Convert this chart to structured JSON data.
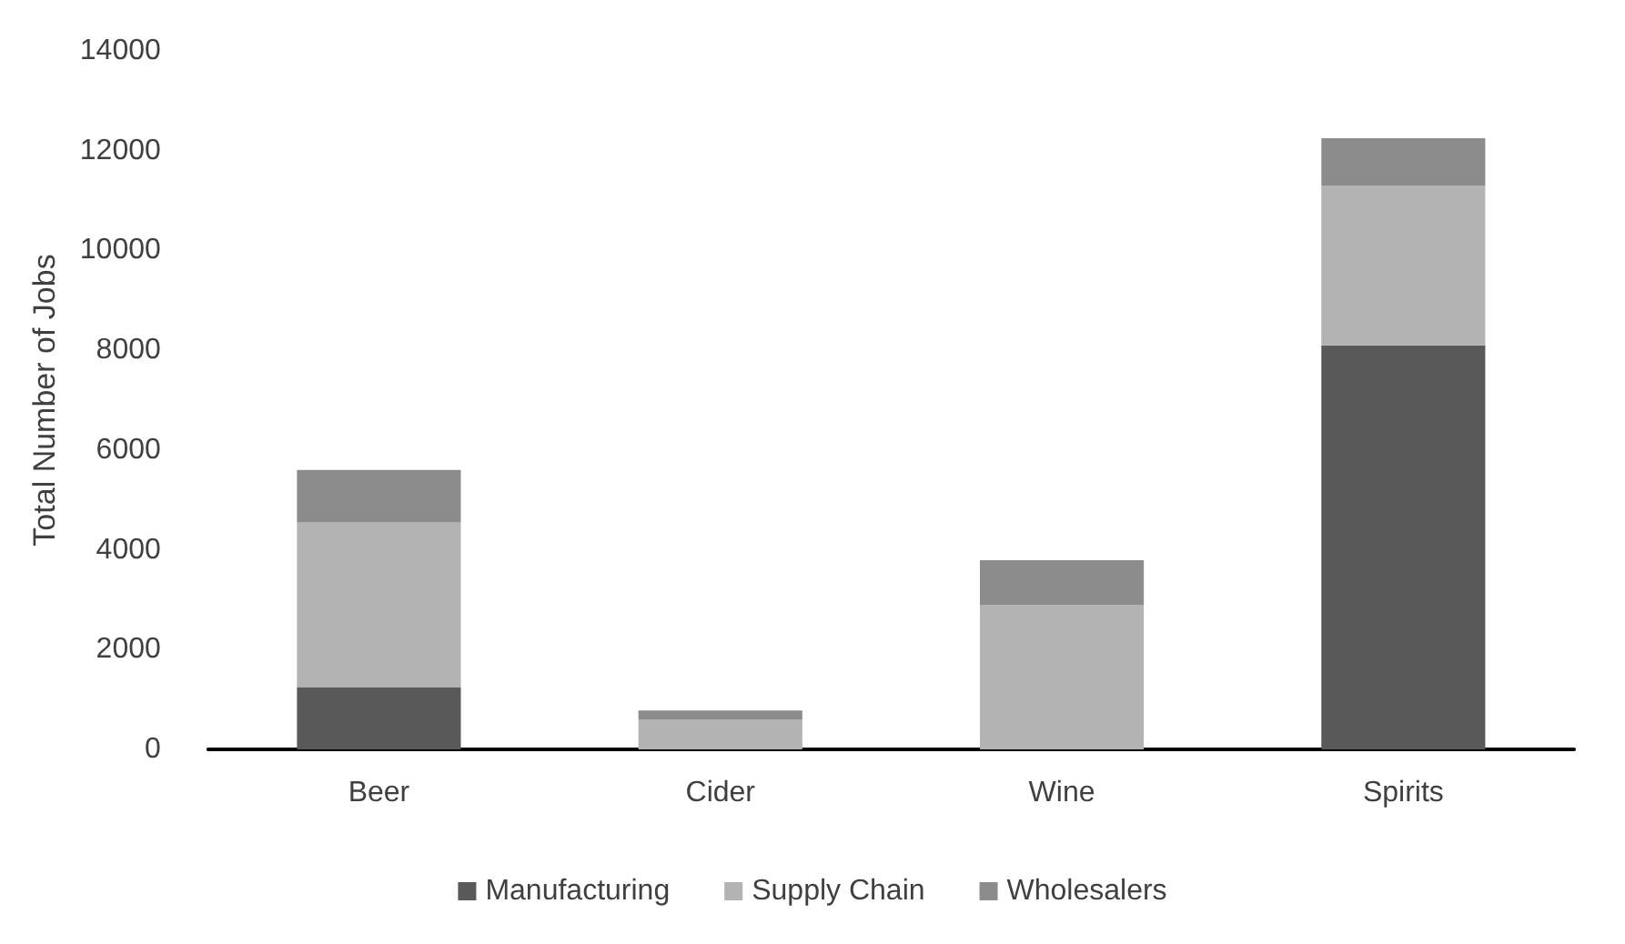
{
  "chart_data": {
    "type": "bar",
    "stacked": true,
    "ylabel": "Total Number of Jobs",
    "categories": [
      "Beer",
      "Cider",
      "Wine",
      "Spirits"
    ],
    "series": [
      {
        "name": "Manufacturing",
        "color": "#595959",
        "values": [
          1250,
          0,
          0,
          8100
        ]
      },
      {
        "name": "Supply Chain",
        "color": "#b3b3b3",
        "values": [
          3300,
          600,
          2900,
          3200
        ]
      },
      {
        "name": "Wholesalers",
        "color": "#8c8c8c",
        "values": [
          1050,
          180,
          890,
          950
        ]
      }
    ],
    "ylim": [
      0,
      14000
    ],
    "yticks": [
      0,
      2000,
      4000,
      6000,
      8000,
      10000,
      12000,
      14000
    ],
    "grid": false,
    "legend": "bottom"
  }
}
